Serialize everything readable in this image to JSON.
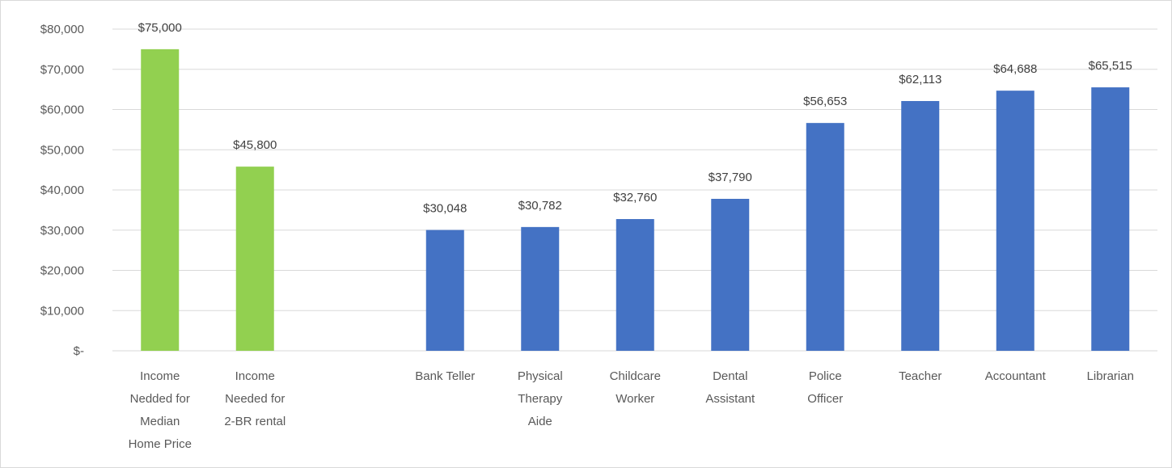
{
  "chart_data": {
    "type": "bar",
    "title": "",
    "xlabel": "",
    "ylabel": "",
    "ylim": [
      0,
      80000
    ],
    "grid": true,
    "legend": "none",
    "y_ticks": [
      "$-",
      "$10,000",
      "$20,000",
      "$30,000",
      "$40,000",
      "$50,000",
      "$60,000",
      "$70,000",
      "$80,000"
    ],
    "colors": {
      "income": "#92D050",
      "occupation": "#4472C4",
      "grid": "#d9d9d9",
      "text": "#595959"
    },
    "bars": [
      {
        "label": "Income Nedded for Median Home Price",
        "label_lines": [
          "Income",
          "Nedded for",
          "Median",
          "Home Price"
        ],
        "value": 75000,
        "value_label": "$75,000",
        "group": "income",
        "slot": 0
      },
      {
        "label": "Income Needed for 2-BR rental",
        "label_lines": [
          "Income",
          "Needed for",
          "2-BR rental"
        ],
        "value": 45800,
        "value_label": "$45,800",
        "group": "income",
        "slot": 1
      },
      {
        "label": "Bank Teller",
        "label_lines": [
          "Bank Teller"
        ],
        "value": 30048,
        "value_label": "$30,048",
        "group": "occupation",
        "slot": 3
      },
      {
        "label": "Physical Therapy Aide",
        "label_lines": [
          "Physical",
          "Therapy",
          "Aide"
        ],
        "value": 30782,
        "value_label": "$30,782",
        "group": "occupation",
        "slot": 4
      },
      {
        "label": "Childcare Worker",
        "label_lines": [
          "Childcare",
          "Worker"
        ],
        "value": 32760,
        "value_label": "$32,760",
        "group": "occupation",
        "slot": 5
      },
      {
        "label": "Dental Assistant",
        "label_lines": [
          "Dental",
          "Assistant"
        ],
        "value": 37790,
        "value_label": "$37,790",
        "group": "occupation",
        "slot": 6
      },
      {
        "label": "Police Officer",
        "label_lines": [
          "Police",
          "Officer"
        ],
        "value": 56653,
        "value_label": "$56,653",
        "group": "occupation",
        "slot": 7
      },
      {
        "label": "Teacher",
        "label_lines": [
          "Teacher"
        ],
        "value": 62113,
        "value_label": "$62,113",
        "group": "occupation",
        "slot": 8
      },
      {
        "label": "Accountant",
        "label_lines": [
          "Accountant"
        ],
        "value": 64688,
        "value_label": "$64,688",
        "group": "occupation",
        "slot": 9
      },
      {
        "label": "Librarian",
        "label_lines": [
          "Librarian"
        ],
        "value": 65515,
        "value_label": "$65,515",
        "group": "occupation",
        "slot": 10
      }
    ]
  }
}
